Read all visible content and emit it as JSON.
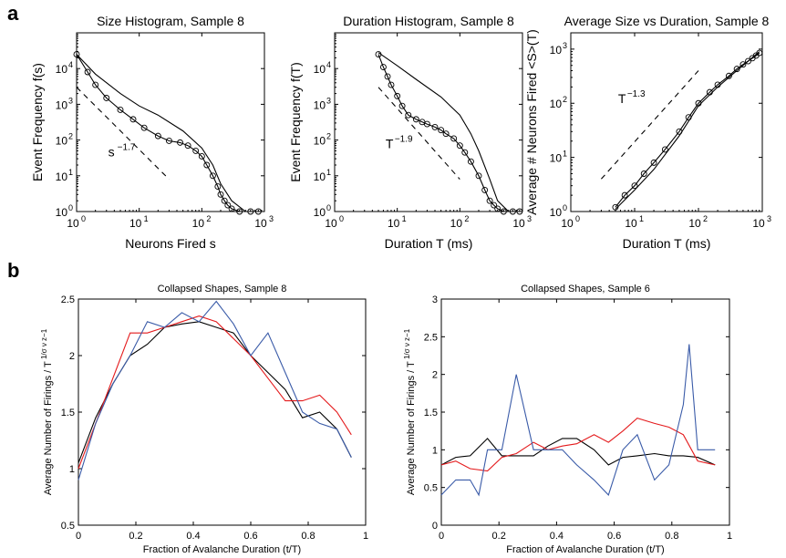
{
  "panel_labels": {
    "a": "a",
    "b": "b"
  },
  "colors": {
    "black": "#000000",
    "red": "#e41a1c",
    "blue": "#3a5ba8"
  },
  "chart_data": [
    {
      "id": "size_hist",
      "type": "scatter",
      "title": "Size Histogram, Sample 8",
      "xlabel": "Neurons Fired s",
      "ylabel": "Event Frequency f(s)",
      "xscale": "log",
      "yscale": "log",
      "xlim": [
        1,
        1000
      ],
      "ylim": [
        1,
        100000
      ],
      "xticks": [
        1,
        10,
        100,
        1000
      ],
      "xtick_labels": [
        "10",
        "10",
        "10",
        "10"
      ],
      "xtick_exps": [
        "0",
        "1",
        "2",
        "3"
      ],
      "yticks": [
        1,
        10,
        100,
        1000,
        10000
      ],
      "ytick_labels": [
        "10",
        "10",
        "10",
        "10",
        "10"
      ],
      "ytick_exps": [
        "0",
        "1",
        "2",
        "3",
        "4"
      ],
      "annotation": {
        "base": "s",
        "exp": "−1.7",
        "x": 3.2,
        "y": 35
      },
      "series": [
        {
          "style": "markers-line",
          "x": [
            1,
            1.5,
            2,
            3,
            5,
            8,
            12,
            20,
            30,
            45,
            60,
            80,
            100,
            120,
            150,
            180,
            200,
            230,
            260,
            300,
            400,
            600,
            800
          ],
          "y": [
            25000,
            8000,
            3500,
            1500,
            700,
            380,
            220,
            130,
            95,
            85,
            70,
            50,
            35,
            20,
            10,
            5,
            3,
            2,
            1.5,
            1.2,
            1,
            1,
            1
          ]
        },
        {
          "style": "line",
          "x": [
            1,
            2,
            5,
            10,
            20,
            50,
            100,
            150,
            200,
            300,
            500,
            800
          ],
          "y": [
            25000,
            7000,
            2000,
            900,
            500,
            180,
            60,
            20,
            6,
            2,
            1,
            1
          ]
        },
        {
          "style": "dashed",
          "x": [
            1,
            30
          ],
          "y": [
            3000,
            8
          ]
        }
      ]
    },
    {
      "id": "dur_hist",
      "type": "scatter",
      "title": "Duration Histogram, Sample 8",
      "xlabel": "Duration T (ms)",
      "ylabel": "Event Frequency f(T)",
      "xscale": "log",
      "yscale": "log",
      "xlim": [
        1,
        1000
      ],
      "ylim": [
        1,
        100000
      ],
      "xticks": [
        1,
        10,
        100,
        1000
      ],
      "xtick_labels": [
        "10",
        "10",
        "10",
        "10"
      ],
      "xtick_exps": [
        "0",
        "1",
        "2",
        "3"
      ],
      "yticks": [
        1,
        10,
        100,
        1000,
        10000
      ],
      "ytick_labels": [
        "10",
        "10",
        "10",
        "10",
        "10"
      ],
      "ytick_exps": [
        "0",
        "1",
        "2",
        "3",
        "4"
      ],
      "annotation": {
        "base": "T",
        "exp": "−1.9",
        "x": 6.5,
        "y": 60
      },
      "series": [
        {
          "style": "markers-line",
          "x": [
            5,
            6,
            7,
            8,
            10,
            12,
            15,
            20,
            25,
            30,
            40,
            50,
            60,
            80,
            100,
            120,
            150,
            200,
            250,
            300,
            350,
            400,
            500,
            700,
            900
          ],
          "y": [
            25000,
            11000,
            6000,
            3500,
            1700,
            900,
            500,
            380,
            320,
            280,
            230,
            190,
            150,
            110,
            70,
            45,
            25,
            10,
            4,
            2,
            1.5,
            1.2,
            1,
            1,
            1
          ]
        },
        {
          "style": "line",
          "x": [
            5,
            10,
            20,
            50,
            100,
            150,
            200,
            300,
            400,
            600
          ],
          "y": [
            28000,
            12000,
            5000,
            1600,
            500,
            150,
            50,
            8,
            2,
            1
          ]
        },
        {
          "style": "dashed",
          "x": [
            5,
            100
          ],
          "y": [
            3000,
            8
          ]
        }
      ]
    },
    {
      "id": "avg_size",
      "type": "scatter",
      "title": "Average Size vs Duration, Sample 8",
      "xlabel": "Duration T (ms)",
      "ylabel": "Average # Neurons Fired <S>(T)",
      "xscale": "log",
      "yscale": "log",
      "xlim": [
        1,
        1000
      ],
      "ylim": [
        1,
        2000
      ],
      "xticks": [
        1,
        10,
        100,
        1000
      ],
      "xtick_labels": [
        "10",
        "10",
        "10",
        "10"
      ],
      "xtick_exps": [
        "0",
        "1",
        "2",
        "3"
      ],
      "yticks": [
        1,
        10,
        100,
        1000
      ],
      "ytick_labels": [
        "10",
        "10",
        "10",
        "10"
      ],
      "ytick_exps": [
        "0",
        "1",
        "2",
        "3"
      ],
      "annotation": {
        "base": "T",
        "exp": "−1.3",
        "x": 5.5,
        "y": 100
      },
      "series": [
        {
          "style": "markers-line",
          "x": [
            5,
            7,
            10,
            14,
            20,
            30,
            50,
            70,
            100,
            150,
            200,
            300,
            400,
            500,
            600,
            700,
            800,
            900
          ],
          "y": [
            1.2,
            2,
            3,
            5,
            8,
            14,
            30,
            55,
            100,
            160,
            220,
            320,
            430,
            520,
            600,
            680,
            760,
            850
          ]
        },
        {
          "style": "line",
          "x": [
            5,
            10,
            20,
            50,
            100,
            200,
            400,
            700,
            900
          ],
          "y": [
            1.1,
            2.5,
            6,
            25,
            90,
            200,
            400,
            700,
            900
          ]
        },
        {
          "style": "dashed",
          "x": [
            3,
            100
          ],
          "y": [
            4,
            400
          ]
        }
      ]
    },
    {
      "id": "shapes8",
      "type": "line",
      "title": "Collapsed Shapes, Sample 8",
      "xlabel": "Fraction of Avalanche Duration (t/T)",
      "ylabel": "Average Number of Firings / T",
      "ylabel_exp": "1/σ ν z−1",
      "xlim": [
        0,
        1
      ],
      "ylim": [
        0.5,
        2.5
      ],
      "xticks": [
        0,
        0.2,
        0.4,
        0.6,
        0.8,
        1
      ],
      "xtick_labels": [
        "0",
        "0.2",
        "0.4",
        "0.6",
        "0.8",
        "1"
      ],
      "yticks": [
        0.5,
        1,
        1.5,
        2,
        2.5
      ],
      "ytick_labels": [
        "0.5",
        "1",
        "1.5",
        "2",
        "2.5"
      ],
      "series": [
        {
          "color": "black",
          "x": [
            0,
            0.06,
            0.12,
            0.18,
            0.24,
            0.3,
            0.36,
            0.42,
            0.48,
            0.54,
            0.6,
            0.66,
            0.72,
            0.78,
            0.84,
            0.9,
            0.95
          ],
          "y": [
            1.05,
            1.45,
            1.75,
            2.0,
            2.1,
            2.25,
            2.28,
            2.3,
            2.25,
            2.2,
            2.0,
            1.85,
            1.7,
            1.45,
            1.5,
            1.35,
            1.1
          ]
        },
        {
          "color": "red",
          "x": [
            0,
            0.06,
            0.12,
            0.18,
            0.24,
            0.3,
            0.36,
            0.42,
            0.48,
            0.54,
            0.6,
            0.66,
            0.72,
            0.78,
            0.84,
            0.9,
            0.95
          ],
          "y": [
            1.0,
            1.4,
            1.8,
            2.2,
            2.2,
            2.25,
            2.3,
            2.35,
            2.3,
            2.15,
            2.0,
            1.8,
            1.6,
            1.6,
            1.65,
            1.5,
            1.3
          ]
        },
        {
          "color": "blue",
          "x": [
            0,
            0.06,
            0.12,
            0.18,
            0.24,
            0.3,
            0.36,
            0.42,
            0.48,
            0.54,
            0.6,
            0.66,
            0.72,
            0.78,
            0.84,
            0.9,
            0.95
          ],
          "y": [
            0.9,
            1.4,
            1.75,
            2.0,
            2.3,
            2.25,
            2.38,
            2.3,
            2.48,
            2.28,
            2.0,
            2.2,
            1.85,
            1.5,
            1.4,
            1.35,
            1.1
          ]
        }
      ]
    },
    {
      "id": "shapes6",
      "type": "line",
      "title": "Collapsed Shapes, Sample 6",
      "xlabel": "Fraction of Avalanche Duration (t/T)",
      "ylabel": "Average Number of Firings / T",
      "ylabel_exp": "1/σ ν z−1",
      "xlim": [
        0,
        1
      ],
      "ylim": [
        0,
        3
      ],
      "xticks": [
        0,
        0.2,
        0.4,
        0.6,
        0.8,
        1
      ],
      "xtick_labels": [
        "0",
        "0.2",
        "0.4",
        "0.6",
        "0.8",
        "1"
      ],
      "yticks": [
        0,
        0.5,
        1,
        1.5,
        2,
        2.5,
        3
      ],
      "ytick_labels": [
        "0",
        "0.5",
        "1",
        "1.5",
        "2",
        "2.5",
        "3"
      ],
      "series": [
        {
          "color": "black",
          "x": [
            0,
            0.05,
            0.1,
            0.16,
            0.21,
            0.26,
            0.32,
            0.37,
            0.42,
            0.47,
            0.53,
            0.58,
            0.63,
            0.68,
            0.74,
            0.79,
            0.84,
            0.89,
            0.95
          ],
          "y": [
            0.8,
            0.9,
            0.92,
            1.15,
            0.92,
            0.92,
            0.92,
            1.05,
            1.15,
            1.15,
            1.0,
            0.8,
            0.9,
            0.92,
            0.95,
            0.92,
            0.92,
            0.9,
            0.8
          ]
        },
        {
          "color": "red",
          "x": [
            0,
            0.05,
            0.1,
            0.16,
            0.21,
            0.26,
            0.32,
            0.37,
            0.42,
            0.47,
            0.53,
            0.58,
            0.63,
            0.68,
            0.74,
            0.79,
            0.84,
            0.89,
            0.95
          ],
          "y": [
            0.8,
            0.85,
            0.75,
            0.72,
            0.9,
            0.95,
            1.1,
            1.0,
            1.05,
            1.08,
            1.2,
            1.1,
            1.25,
            1.42,
            1.35,
            1.3,
            1.2,
            0.85,
            0.8
          ]
        },
        {
          "color": "blue",
          "x": [
            0,
            0.05,
            0.1,
            0.13,
            0.16,
            0.21,
            0.26,
            0.32,
            0.37,
            0.42,
            0.47,
            0.53,
            0.58,
            0.63,
            0.68,
            0.74,
            0.79,
            0.84,
            0.86,
            0.89,
            0.95
          ],
          "y": [
            0.4,
            0.6,
            0.6,
            0.4,
            1.0,
            1.0,
            2.0,
            1.0,
            1.0,
            1.0,
            0.8,
            0.6,
            0.4,
            1.0,
            1.2,
            0.6,
            0.8,
            1.6,
            2.4,
            1.0,
            1.0
          ]
        }
      ]
    }
  ]
}
